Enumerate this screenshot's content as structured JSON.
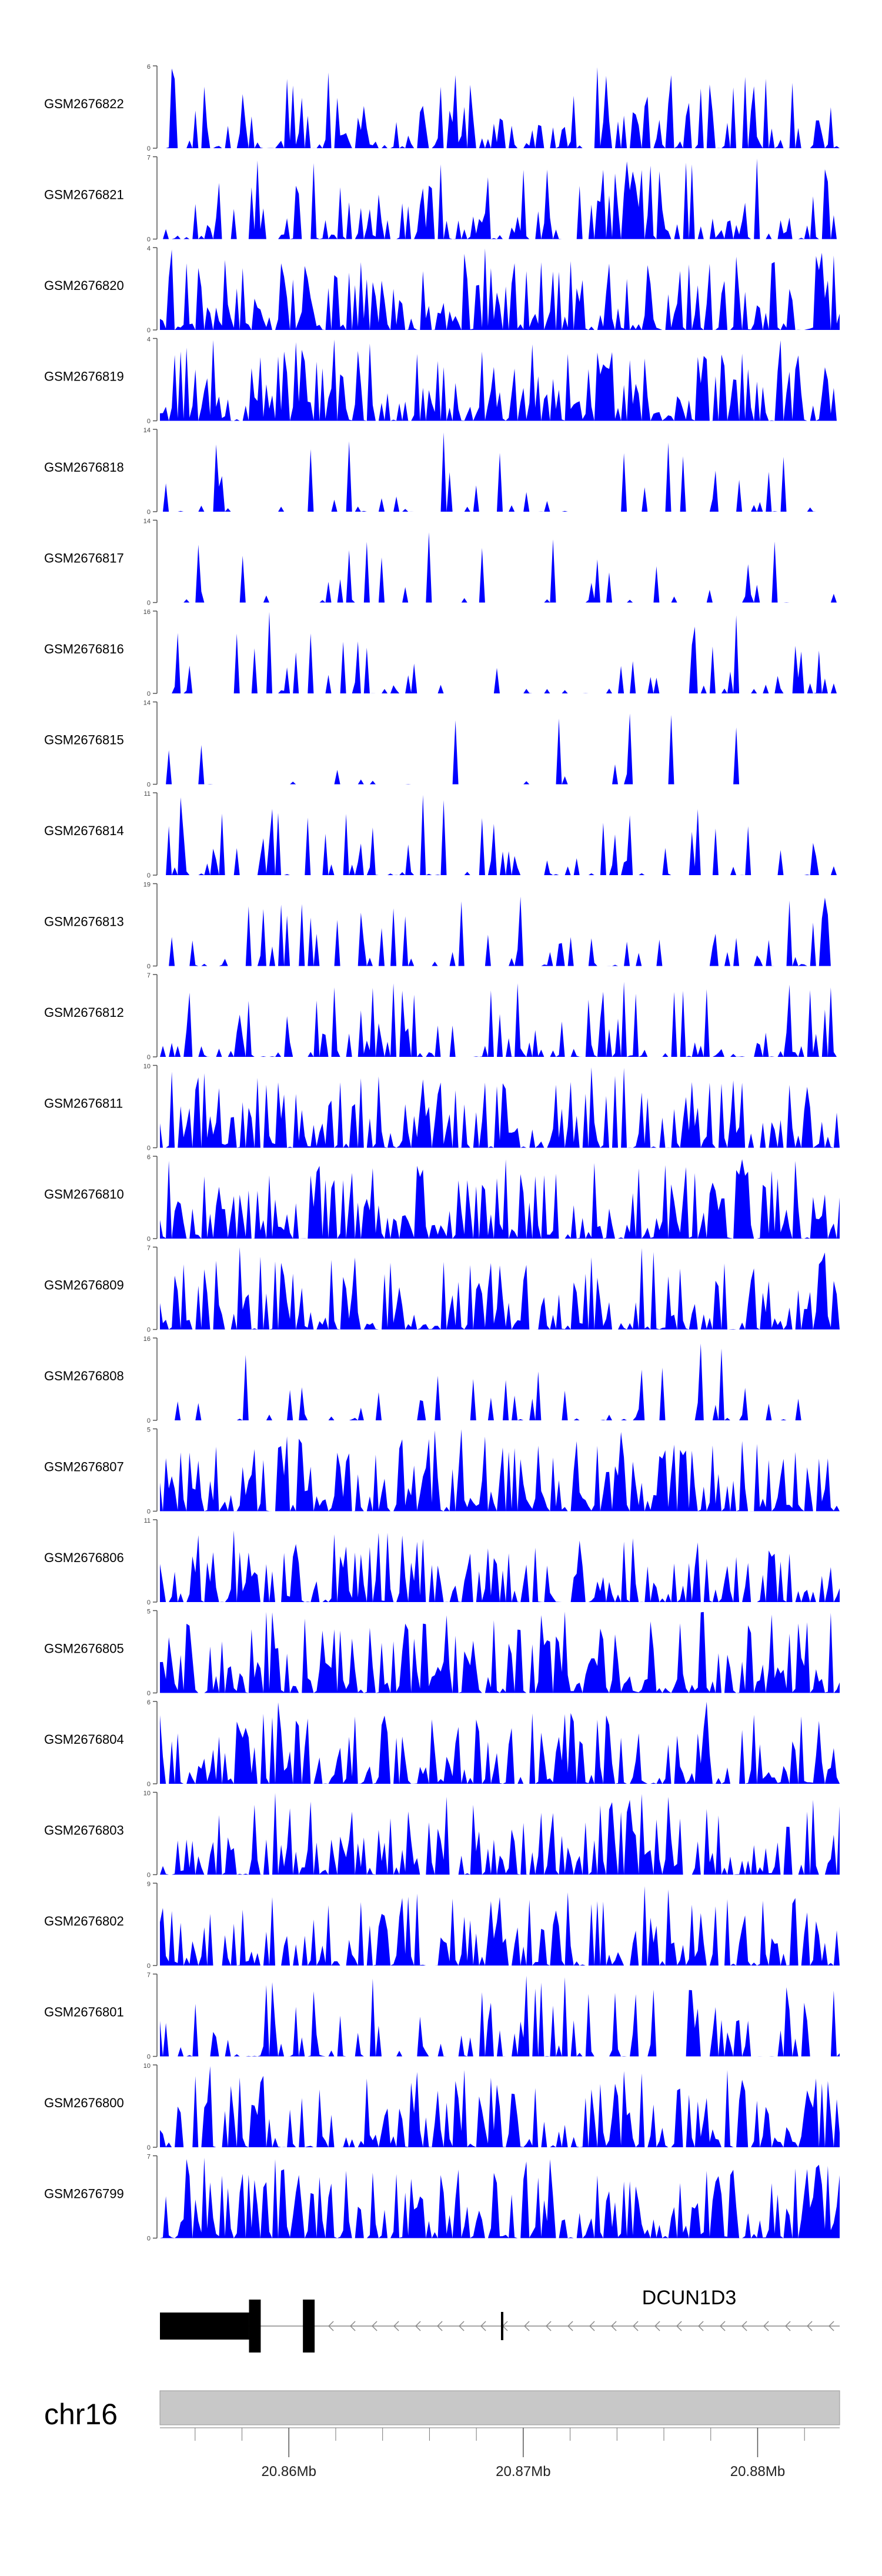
{
  "chart_data": {
    "type": "area",
    "title": "",
    "xlabel": "",
    "ylabel": "",
    "fill_color": "#0000ff",
    "xlim": [
      20.8545,
      20.8835
    ],
    "ylim_min": 0,
    "tracks": [
      {
        "name": "GSM2676822",
        "ymax": "6",
        "seed": 22,
        "sparsity": 0.35
      },
      {
        "name": "GSM2676821",
        "ymax": "7",
        "seed": 21,
        "sparsity": 0.4
      },
      {
        "name": "GSM2676820",
        "ymax": "4",
        "seed": 20,
        "sparsity": 0.12
      },
      {
        "name": "GSM2676819",
        "ymax": "4",
        "seed": 19,
        "sparsity": 0.12
      },
      {
        "name": "GSM2676818",
        "ymax": "14",
        "seed": 18,
        "sparsity": 0.8
      },
      {
        "name": "GSM2676817",
        "ymax": "14",
        "seed": 17,
        "sparsity": 0.85
      },
      {
        "name": "GSM2676816",
        "ymax": "16",
        "seed": 16,
        "sparsity": 0.78
      },
      {
        "name": "GSM2676815",
        "ymax": "14",
        "seed": 15,
        "sparsity": 0.9
      },
      {
        "name": "GSM2676814",
        "ymax": "11",
        "seed": 14,
        "sparsity": 0.65
      },
      {
        "name": "GSM2676813",
        "ymax": "19",
        "seed": 13,
        "sparsity": 0.75
      },
      {
        "name": "GSM2676812",
        "ymax": "7",
        "seed": 12,
        "sparsity": 0.5
      },
      {
        "name": "GSM2676811",
        "ymax": "10",
        "seed": 11,
        "sparsity": 0.3
      },
      {
        "name": "GSM2676810",
        "ymax": "6",
        "seed": 10,
        "sparsity": 0.15
      },
      {
        "name": "GSM2676809",
        "ymax": "7",
        "seed": 9,
        "sparsity": 0.2
      },
      {
        "name": "GSM2676808",
        "ymax": "16",
        "seed": 8,
        "sparsity": 0.8
      },
      {
        "name": "GSM2676807",
        "ymax": "5",
        "seed": 7,
        "sparsity": 0.15
      },
      {
        "name": "GSM2676806",
        "ymax": "11",
        "seed": 6,
        "sparsity": 0.3
      },
      {
        "name": "GSM2676805",
        "ymax": "5",
        "seed": 5,
        "sparsity": 0.12
      },
      {
        "name": "GSM2676804",
        "ymax": "6",
        "seed": 4,
        "sparsity": 0.2
      },
      {
        "name": "GSM2676803",
        "ymax": "10",
        "seed": 3,
        "sparsity": 0.25
      },
      {
        "name": "GSM2676802",
        "ymax": "9",
        "seed": 2,
        "sparsity": 0.3
      },
      {
        "name": "GSM2676801",
        "ymax": "7",
        "seed": 1,
        "sparsity": 0.55
      },
      {
        "name": "GSM2676800",
        "ymax": "10",
        "seed": 100,
        "sparsity": 0.25
      },
      {
        "name": "GSM2676799",
        "ymax": "7",
        "seed": 99,
        "sparsity": 0.2
      }
    ],
    "gene": {
      "name": "DCUN1D3",
      "strand": "-",
      "exons_mb": [
        [
          20.8545,
          20.8583
        ],
        [
          20.8583,
          20.8588
        ],
        [
          20.8606,
          20.8611
        ]
      ],
      "tss_mb": 20.8691,
      "end_mb": 20.8835
    },
    "chromosome": {
      "label": "chr16",
      "ticks": [
        {
          "pos": 20.86,
          "label": "20.86Mb"
        },
        {
          "pos": 20.87,
          "label": "20.87Mb"
        },
        {
          "pos": 20.88,
          "label": "20.88Mb"
        }
      ],
      "minor_step": 0.002
    }
  }
}
